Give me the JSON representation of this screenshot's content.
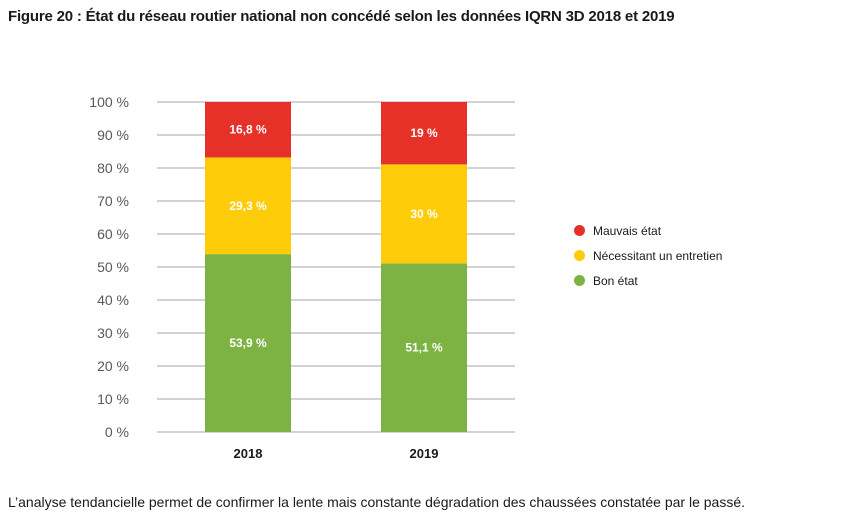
{
  "figure_title": "Figure 20 : État du réseau routier national non concédé selon les données IQRN 3D 2018 et 2019",
  "caption": "L’analyse tendancielle permet de confirmer la lente mais constante dégradation des chaussées constatée par le passé.",
  "chart_data": {
    "type": "bar",
    "stacked": true,
    "title": "Figure 20 : État du réseau routier national non concédé selon les données IQRN 3D 2018 et 2019",
    "categories": [
      "2018",
      "2019"
    ],
    "ylim": [
      0,
      100
    ],
    "yticks": [
      "0 %",
      "10 %",
      "20 %",
      "30 %",
      "40 %",
      "50 %",
      "60 %",
      "70 %",
      "80 %",
      "90 %",
      "100 %"
    ],
    "grid": true,
    "legend_position": "right",
    "series": [
      {
        "name": "Bon état",
        "values": [
          53.9,
          51.1
        ],
        "labels": [
          "53,9 %",
          "51,1 %"
        ],
        "color": "#7cb342"
      },
      {
        "name": "Nécessitant un entretien",
        "values": [
          29.3,
          30
        ],
        "labels": [
          "29,3 %",
          "30 %"
        ],
        "color": "#ffcc0a"
      },
      {
        "name": "Mauvais état",
        "values": [
          16.8,
          19
        ],
        "labels": [
          "16,8 %",
          "19 %"
        ],
        "color": "#e53128"
      }
    ],
    "legend_order": [
      "Mauvais état",
      "Nécessitant un entretien",
      "Bon état"
    ]
  }
}
